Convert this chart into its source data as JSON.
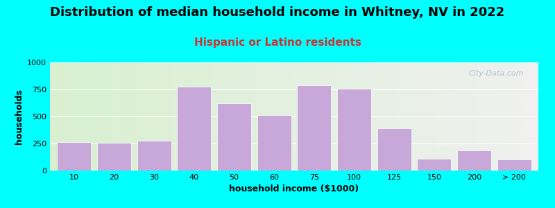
{
  "title": "Distribution of median household income in Whitney, NV in 2022",
  "subtitle": "Hispanic or Latino residents",
  "xlabel": "household income ($1000)",
  "ylabel": "households",
  "bar_labels": [
    "10",
    "20",
    "30",
    "40",
    "50",
    "60",
    "75",
    "100",
    "125",
    "150",
    "200",
    "> 200"
  ],
  "bar_values": [
    260,
    255,
    275,
    775,
    625,
    510,
    790,
    755,
    390,
    110,
    185,
    100
  ],
  "bar_color": "#c8a8d8",
  "bar_edge_color": "#ffffff",
  "ylim": [
    0,
    1000
  ],
  "yticks": [
    0,
    250,
    500,
    750,
    1000
  ],
  "background_color": "#00ffff",
  "plot_bg_gradient_left": "#d8f0d0",
  "plot_bg_gradient_right": "#f0f0f0",
  "title_fontsize": 13,
  "subtitle_fontsize": 11,
  "subtitle_color": "#cc3333",
  "axis_label_fontsize": 9,
  "tick_fontsize": 8,
  "watermark_text": "City-Data.com",
  "watermark_color": "#aabbc8"
}
